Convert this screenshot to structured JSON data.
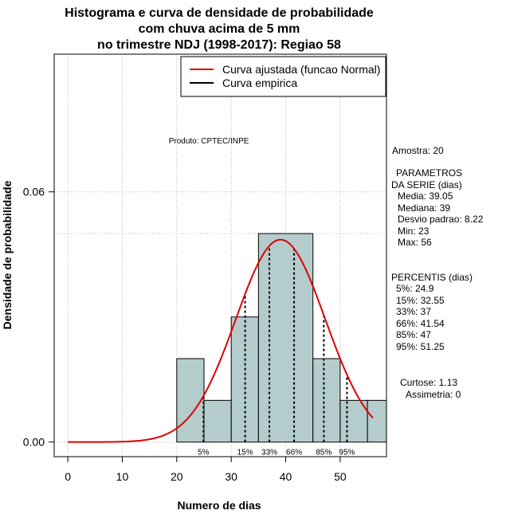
{
  "chart_data": {
    "type": "bar",
    "title_lines": [
      "Histograma e curva de densidade de probabilidade",
      "com chuva acima de 5 mm",
      "no trimestre NDJ (1998-2017): Regiao 58"
    ],
    "xlabel": "Numero de dias",
    "ylabel": "Densidade de probabilidade",
    "xlim": [
      -2.5,
      58.5
    ],
    "ylim": [
      -0.0035,
      0.093
    ],
    "xticks": [
      0,
      10,
      20,
      30,
      40,
      50
    ],
    "yticks": [
      0.0,
      0.06
    ],
    "ytick_labels": [
      "0.00",
      "0.06"
    ],
    "xgrid": [
      0,
      10,
      20,
      30,
      40,
      50
    ],
    "ygrid": [
      0,
      0.06,
      0.05
    ],
    "bins": [
      {
        "x0": 20,
        "x1": 25,
        "density": 0.02
      },
      {
        "x0": 25,
        "x1": 30,
        "density": 0.01
      },
      {
        "x0": 30,
        "x1": 35,
        "density": 0.03
      },
      {
        "x0": 35,
        "x1": 45,
        "density": 0.05
      },
      {
        "x0": 45,
        "x1": 50,
        "density": 0.02
      },
      {
        "x0": 50,
        "x1": 55,
        "density": 0.01
      },
      {
        "x0": 55,
        "x1": 58.5,
        "density": 0.01
      }
    ],
    "fitted_curve": {
      "name": "Curva ajustada (funcao Normal)",
      "color": "#e00000",
      "mean": 39.05,
      "sd": 8.22,
      "x_from": 0,
      "x_to": 56
    },
    "empirical_curve": {
      "name": "Curva empirica",
      "color": "#000000"
    },
    "percentile_lines": [
      {
        "label": "5%",
        "x": 24.9
      },
      {
        "label": "15%",
        "x": 32.55
      },
      {
        "label": "33%",
        "x": 37
      },
      {
        "label": "66%",
        "x": 41.54
      },
      {
        "label": "85%",
        "x": 47
      },
      {
        "label": "95%",
        "x": 51.25
      }
    ],
    "annotation": "Produto: CPTEC/INPE",
    "bar_color": "#b4cccc"
  },
  "stats": {
    "amostra": "Amostra: 20",
    "param_header_1": "PARAMETROS",
    "param_header_2": "DA SERIE (dias)",
    "media": "Media: 39.05",
    "mediana": "Mediana: 39",
    "desvio": "Desvio padrao: 8.22",
    "min": "Min: 23",
    "max": "Max: 56",
    "perc_header": "PERCENTIS (dias)",
    "p5": "5%: 24.9",
    "p15": "15%: 32.55",
    "p33": "33%: 37",
    "p66": "66%: 41.54",
    "p85": "85%: 47",
    "p95": "95%: 51.25",
    "curtose": "Curtose: 1.13",
    "assimetria": "Assimetria: 0"
  }
}
